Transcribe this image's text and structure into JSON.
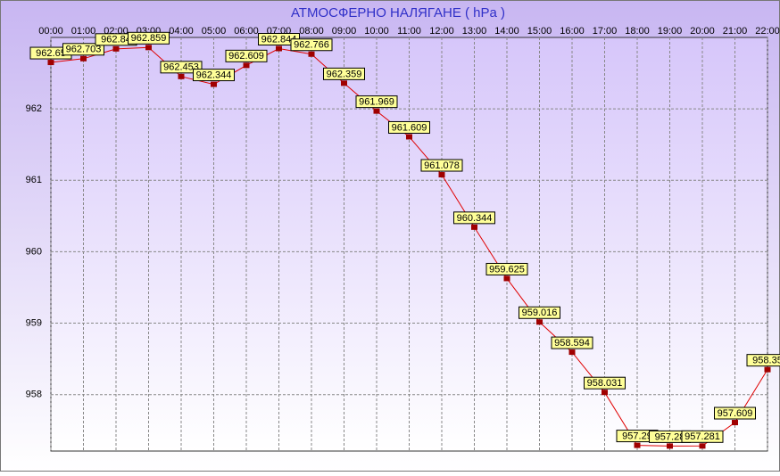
{
  "chart_data": {
    "type": "line",
    "title": "АТМОСФЕРНО НАЛЯГАНЕ  ( hPa )",
    "categories": [
      "00:00",
      "01:00",
      "02:00",
      "03:00",
      "04:00",
      "05:00",
      "06:00",
      "07:00",
      "08:00",
      "09:00",
      "10:00",
      "11:00",
      "12:00",
      "13:00",
      "14:00",
      "15:00",
      "16:00",
      "17:00",
      "18:00",
      "19:00",
      "20:00",
      "21:00",
      "22:00"
    ],
    "series": [
      {
        "color": "#e00000",
        "values": [
          962.65,
          962.703,
          962.84,
          962.859,
          962.453,
          962.344,
          962.609,
          962.844,
          962.766,
          962.359,
          961.969,
          961.609,
          961.078,
          960.344,
          959.625,
          959.016,
          958.594,
          958.031,
          957.29,
          957.28,
          957.281,
          957.609,
          958.35
        ]
      }
    ],
    "ylim": [
      957.21,
      963.0
    ],
    "yticks": [
      958,
      959,
      960,
      961,
      962
    ],
    "grid": true
  }
}
